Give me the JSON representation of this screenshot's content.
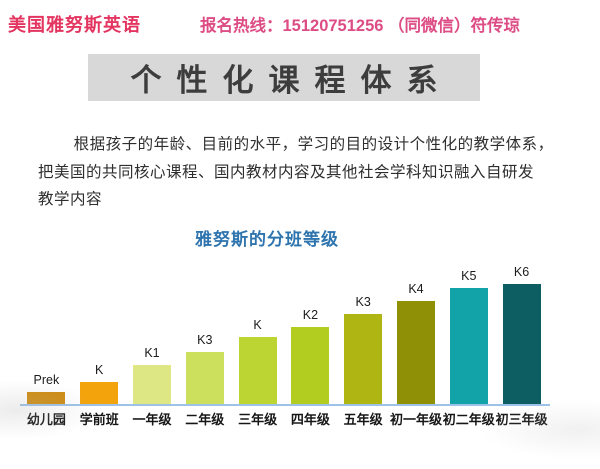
{
  "header": {
    "brand": "美国雅努斯英语",
    "brand_color": "#e43560",
    "hotline_label": "报名热线：",
    "hotline_number": "15120751256",
    "hotline_suffix": " （同微信）符传琼",
    "hotline_color": "#dd4d85"
  },
  "banner": {
    "title": "个性化课程体系",
    "background": "#d8d8d8",
    "text_color": "#3d3d3d"
  },
  "intro": {
    "lines": [
      "根据孩子的年龄、目前的水平，学习的目的设计个性化的教学体系，",
      "把美国的共同核心课程、国内教材内容及其他社会学科知识融入自研发",
      "教学内容"
    ]
  },
  "chart_data": {
    "type": "bar",
    "title": "雅努斯的分班等级",
    "title_color": "#2e74ae",
    "categories": [
      "幼儿园",
      "学前班",
      "一年级",
      "二年级",
      "三年级",
      "四年级",
      "五年级",
      "初一年级",
      "初二年级",
      "初三年级"
    ],
    "bar_labels": [
      "Prek",
      "K",
      "K1",
      "K3",
      "K",
      "K2",
      "K3",
      "K4",
      "K5",
      "K6"
    ],
    "values": [
      13,
      23,
      40,
      53,
      68,
      78,
      91,
      104,
      117,
      132
    ],
    "value_unit": "px-height (no y-axis shown; bars ascend in equal steps)",
    "colors": [
      "#ce8b10",
      "#f3a30b",
      "#dde884",
      "#cce05e",
      "#bdd532",
      "#b2cd1f",
      "#afb513",
      "#8f9005",
      "#12a3a8",
      "#0c5e62"
    ],
    "baseline_color": "#9cc2e8",
    "xlabel": "",
    "ylabel": "",
    "grid": false,
    "legend": false
  }
}
